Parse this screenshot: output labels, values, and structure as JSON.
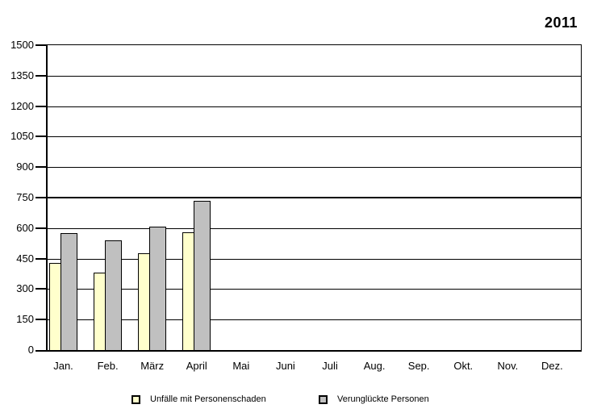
{
  "chart_data": {
    "type": "bar",
    "title": "2011",
    "categories": [
      "Jan.",
      "Feb.",
      "März",
      "April",
      "Mai",
      "Juni",
      "Juli",
      "Aug.",
      "Sep.",
      "Okt.",
      "Nov.",
      "Dez."
    ],
    "series": [
      {
        "name": "Unfälle mit Personenschaden",
        "color": "#FFFFCC",
        "values": [
          430,
          380,
          475,
          580,
          null,
          null,
          null,
          null,
          null,
          null,
          null,
          null
        ]
      },
      {
        "name": "Verunglückte Personen",
        "color": "#C0C0C0",
        "values": [
          575,
          540,
          607,
          733,
          null,
          null,
          null,
          null,
          null,
          null,
          null,
          null
        ]
      }
    ],
    "xlabel": "",
    "ylabel": "",
    "ylim": [
      0,
      1500
    ],
    "yticks": [
      0,
      150,
      300,
      450,
      600,
      750,
      900,
      1050,
      1200,
      1350,
      1500
    ],
    "grid": true,
    "gridline_color": "#000000",
    "emphasis_gridline": 750,
    "plot_border_color": "#000000",
    "background_color": "#FFFFFF",
    "legend_position": "bottom"
  }
}
